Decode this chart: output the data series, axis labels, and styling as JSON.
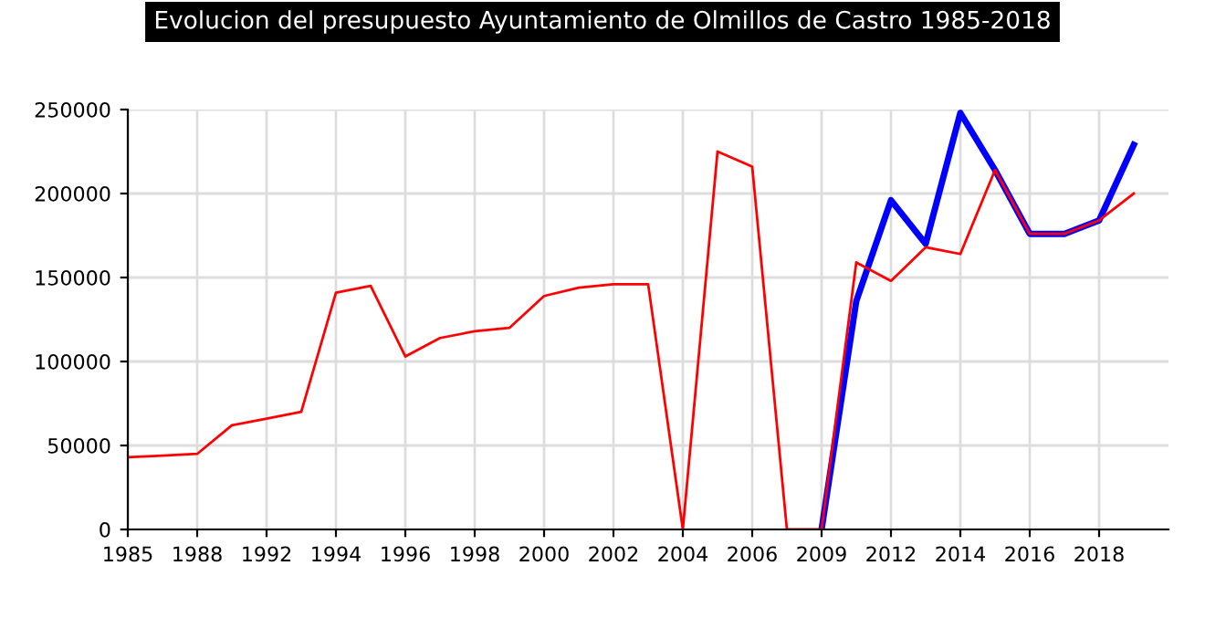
{
  "chart_data": {
    "type": "line",
    "title": "Evolucion del presupuesto Ayuntamiento de Olmillos de Castro 1985-2018",
    "categories": [
      "1985",
      null,
      "1988",
      null,
      "1992",
      null,
      "1994",
      null,
      "1996",
      null,
      "1998",
      null,
      "2000",
      null,
      "2002",
      null,
      "2004",
      null,
      "2006",
      null,
      "2009",
      null,
      "2012",
      null,
      "2014",
      null,
      "2016",
      null,
      "2018",
      null
    ],
    "series": [
      {
        "color": "#0000ff",
        "values": [
          null,
          null,
          null,
          null,
          null,
          null,
          null,
          null,
          null,
          null,
          null,
          null,
          null,
          null,
          null,
          null,
          null,
          null,
          null,
          null,
          0,
          136000,
          196000,
          170000,
          248000,
          214000,
          176000,
          176000,
          184000,
          229000
        ]
      },
      {
        "color": "#ff0000",
        "values": [
          43000,
          44000,
          45000,
          62000,
          66000,
          70000,
          141000,
          145000,
          103000,
          114000,
          118000,
          120000,
          139000,
          144000,
          146000,
          146000,
          0,
          225000,
          216000,
          0,
          0,
          159000,
          148000,
          168000,
          164000,
          214000,
          176000,
          176000,
          184000,
          200000
        ]
      }
    ],
    "ylim": [
      0,
      250000
    ],
    "yticks": [
      0,
      50000,
      100000,
      150000,
      200000,
      250000
    ],
    "grid": true
  }
}
